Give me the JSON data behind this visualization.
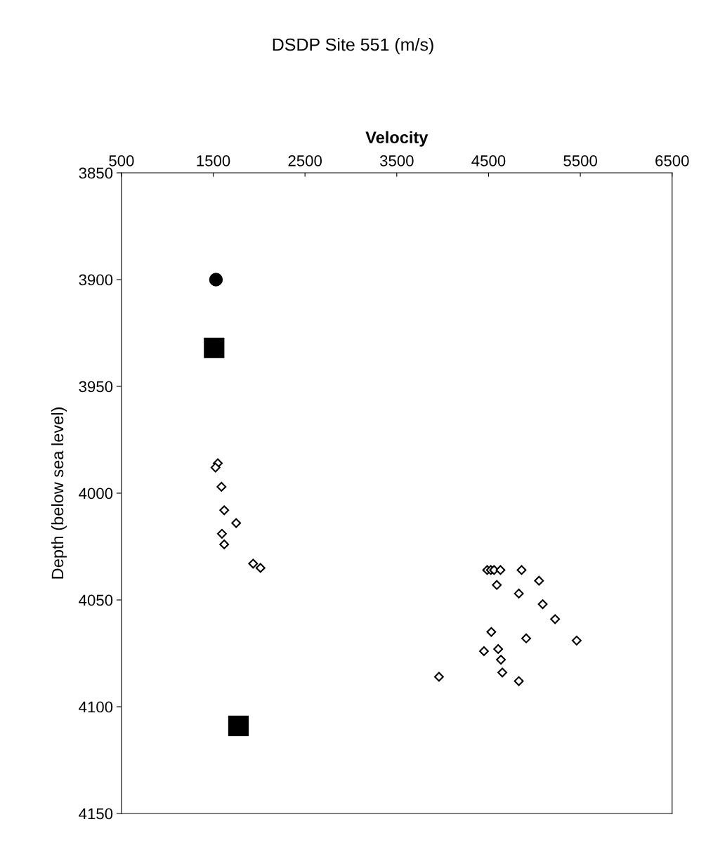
{
  "chart_data": {
    "type": "scatter",
    "title": "DSDP Site 551 (m/s)",
    "xlabel": "Velocity",
    "ylabel": "Depth (below sea level)",
    "xlim": [
      500,
      6500
    ],
    "xticks": [
      500,
      1500,
      2500,
      3500,
      4500,
      5500,
      6500
    ],
    "ylim": [
      4150,
      3850
    ],
    "yticks": [
      3850,
      3900,
      3950,
      4000,
      4050,
      4100,
      4150
    ],
    "grid": false,
    "legend": false,
    "series": [
      {
        "color": "#000000",
        "marker": "circle",
        "x": [
          1530
        ],
        "values": [
          3900
        ]
      },
      {
        "color": "#000000",
        "marker": "square",
        "x": [
          1510,
          1775
        ],
        "values": [
          3932,
          4109
        ]
      },
      {
        "color": "#000000",
        "marker": "diamond",
        "x": [
          1550,
          1525,
          1590,
          1620,
          1750,
          1595,
          1620,
          1935,
          2015,
          4485,
          4525,
          4560,
          4630,
          4860,
          5050,
          4590,
          4830,
          5090,
          5225,
          4530,
          4910,
          5460,
          4450,
          4605,
          4635,
          4650,
          3960,
          4830
        ],
        "values": [
          3986,
          3988,
          3997,
          4008,
          4014,
          4019,
          4024,
          4033,
          4035,
          4036,
          4036,
          4036,
          4036,
          4036,
          4041,
          4043,
          4047,
          4052,
          4059,
          4065,
          4068,
          4069,
          4074,
          4073,
          4078,
          4084,
          4086,
          4088
        ]
      }
    ]
  }
}
